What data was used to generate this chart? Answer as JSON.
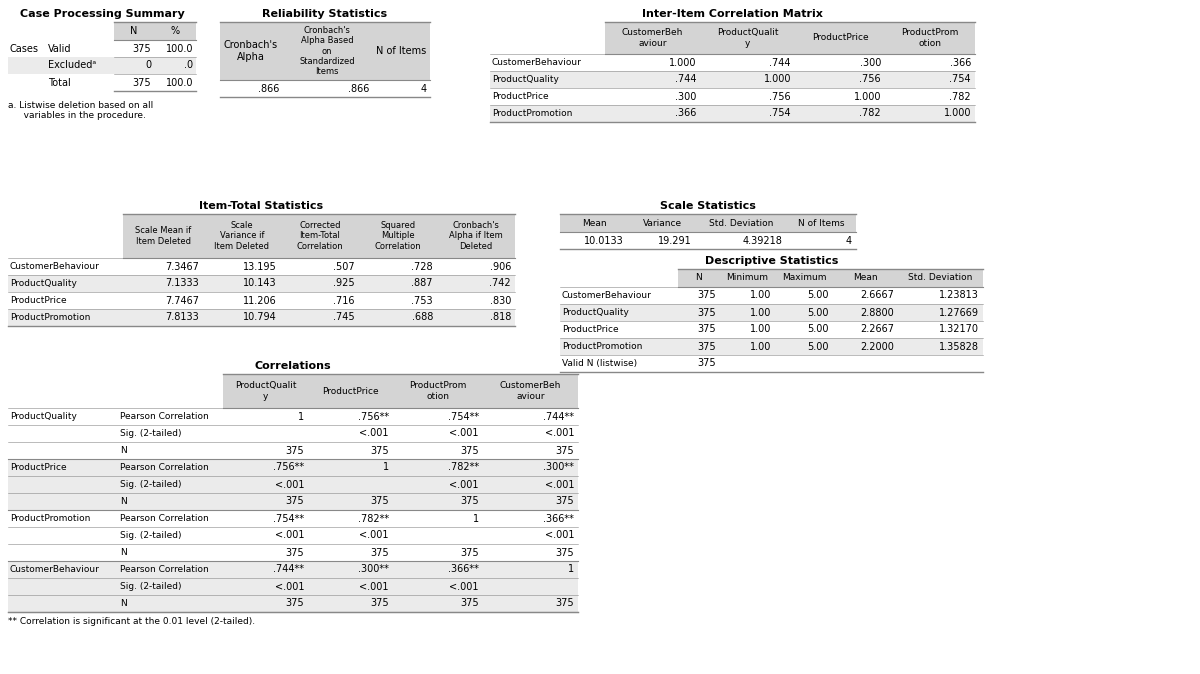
{
  "bg_color": "#ffffff",
  "header_bg": "#d4d4d4",
  "alt_row_bg": "#ebebeb",
  "white_row_bg": "#ffffff",
  "border_color": "#888888",
  "case_processing": {
    "title": "Case Processing Summary",
    "rows": [
      [
        "Cases",
        "Valid",
        "375",
        "100.0"
      ],
      [
        "",
        "Excludedᵃ",
        "0",
        ".0"
      ],
      [
        "",
        "Total",
        "375",
        "100.0"
      ]
    ],
    "note": "a. Listwise deletion based on all\n   variables in the procedure."
  },
  "reliability_stats": {
    "title": "Reliability Statistics",
    "col_headers": [
      "Cronbach's\nAlpha",
      "Cronbach's\nAlpha Based\non\nStandardized\nItems",
      "N of Items"
    ],
    "row": [
      ".866",
      ".866",
      "4"
    ]
  },
  "inter_item_corr": {
    "title": "Inter-Item Correlation Matrix",
    "col_headers": [
      "CustomerBeh\naviour",
      "ProductQualit\ny",
      "ProductPrice",
      "ProductProm\notion"
    ],
    "row_labels": [
      "CustomerBehaviour",
      "ProductQuality",
      "ProductPrice",
      "ProductPromotion"
    ],
    "data": [
      [
        "1.000",
        ".744",
        ".300",
        ".366"
      ],
      [
        ".744",
        "1.000",
        ".756",
        ".754"
      ],
      [
        ".300",
        ".756",
        "1.000",
        ".782"
      ],
      [
        ".366",
        ".754",
        ".782",
        "1.000"
      ]
    ]
  },
  "item_total_stats": {
    "title": "Item-Total Statistics",
    "col_headers": [
      "Scale Mean if\nItem Deleted",
      "Scale\nVariance if\nItem Deleted",
      "Corrected\nItem-Total\nCorrelation",
      "Squared\nMultiple\nCorrelation",
      "Cronbach's\nAlpha if Item\nDeleted"
    ],
    "row_labels": [
      "CustomerBehaviour",
      "ProductQuality",
      "ProductPrice",
      "ProductPromotion"
    ],
    "data": [
      [
        "7.3467",
        "13.195",
        ".507",
        ".728",
        ".906"
      ],
      [
        "7.1333",
        "10.143",
        ".925",
        ".887",
        ".742"
      ],
      [
        "7.7467",
        "11.206",
        ".716",
        ".753",
        ".830"
      ],
      [
        "7.8133",
        "10.794",
        ".745",
        ".688",
        ".818"
      ]
    ]
  },
  "scale_statistics": {
    "title": "Scale Statistics",
    "col_headers": [
      "Mean",
      "Variance",
      "Std. Deviation",
      "N of Items"
    ],
    "row": [
      "10.0133",
      "19.291",
      "4.39218",
      "4"
    ]
  },
  "descriptive_stats": {
    "title": "Descriptive Statistics",
    "col_headers": [
      "N",
      "Minimum",
      "Maximum",
      "Mean",
      "Std. Deviation"
    ],
    "row_labels": [
      "CustomerBehaviour",
      "ProductQuality",
      "ProductPrice",
      "ProductPromotion",
      "Valid N (listwise)"
    ],
    "data": [
      [
        "375",
        "1.00",
        "5.00",
        "2.6667",
        "1.23813"
      ],
      [
        "375",
        "1.00",
        "5.00",
        "2.8800",
        "1.27669"
      ],
      [
        "375",
        "1.00",
        "5.00",
        "2.2667",
        "1.32170"
      ],
      [
        "375",
        "1.00",
        "5.00",
        "2.2000",
        "1.35828"
      ],
      [
        "375",
        "",
        "",
        "",
        ""
      ]
    ]
  },
  "correlations": {
    "title": "Correlations",
    "col_headers": [
      "ProductQualit\ny",
      "ProductPrice",
      "ProductProm\notion",
      "CustomerBeh\naviour"
    ],
    "row_groups": [
      {
        "label": "ProductQuality",
        "rows": [
          [
            "Pearson Correlation",
            "1",
            ".756**",
            ".754**",
            ".744**"
          ],
          [
            "Sig. (2-tailed)",
            "",
            "<.001",
            "<.001",
            "<.001"
          ],
          [
            "N",
            "375",
            "375",
            "375",
            "375"
          ]
        ]
      },
      {
        "label": "ProductPrice",
        "rows": [
          [
            "Pearson Correlation",
            ".756**",
            "1",
            ".782**",
            ".300**"
          ],
          [
            "Sig. (2-tailed)",
            "<.001",
            "",
            "<.001",
            "<.001"
          ],
          [
            "N",
            "375",
            "375",
            "375",
            "375"
          ]
        ]
      },
      {
        "label": "ProductPromotion",
        "rows": [
          [
            "Pearson Correlation",
            ".754**",
            ".782**",
            "1",
            ".366**"
          ],
          [
            "Sig. (2-tailed)",
            "<.001",
            "<.001",
            "",
            "<.001"
          ],
          [
            "N",
            "375",
            "375",
            "375",
            "375"
          ]
        ]
      },
      {
        "label": "CustomerBehaviour",
        "rows": [
          [
            "Pearson Correlation",
            ".744**",
            ".300**",
            ".366**",
            "1"
          ],
          [
            "Sig. (2-tailed)",
            "<.001",
            "<.001",
            "<.001",
            ""
          ],
          [
            "N",
            "375",
            "375",
            "375",
            "375"
          ]
        ]
      }
    ],
    "note": "** Correlation is significant at the 0.01 level (2-tailed)."
  }
}
